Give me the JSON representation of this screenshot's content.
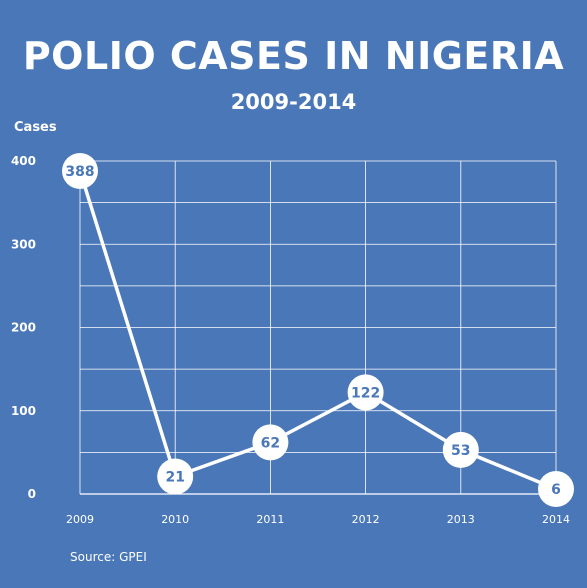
{
  "header": {
    "title": "POLIO CASES IN NIGERIA",
    "subtitle": "2009-2014"
  },
  "axis": {
    "ylabel": "Cases"
  },
  "footer": {
    "source": "Source: GPEI"
  },
  "colors": {
    "background": "#4a77b8",
    "line": "#ffffff",
    "label_text": "#4a77b8",
    "grid": "#ffffff"
  },
  "chart_data": {
    "type": "line",
    "title": "POLIO CASES IN NIGERIA",
    "subtitle": "2009-2014",
    "xlabel": "",
    "ylabel": "Cases",
    "x": [
      "2009",
      "2010",
      "2011",
      "2012",
      "2013",
      "2014"
    ],
    "series": [
      {
        "values": [
          388,
          21,
          62,
          122,
          53,
          6
        ]
      }
    ],
    "ylim": [
      0,
      400
    ],
    "yticks": [
      0,
      100,
      200,
      300,
      400
    ],
    "grid": true,
    "data_labels": true,
    "legend": "none"
  }
}
